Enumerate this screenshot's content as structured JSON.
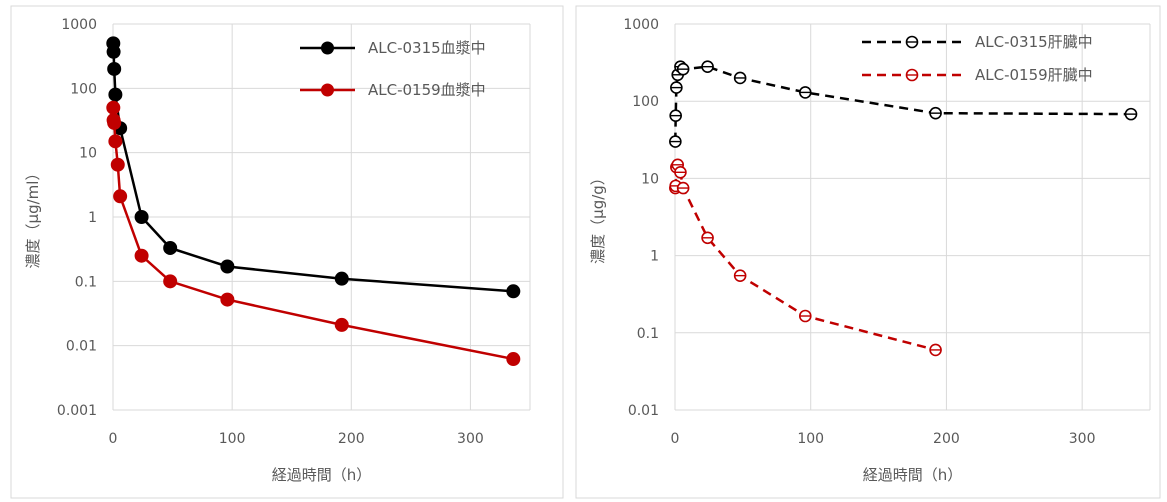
{
  "chart_data": [
    {
      "type": "line",
      "xlabel": "経過時間（h）",
      "ylabel": "濃度（μg/ml）",
      "yscale": "log",
      "xlim": [
        0,
        350
      ],
      "ylim": [
        0.001,
        1000
      ],
      "xticks": [
        "0",
        "100",
        "200",
        "300"
      ],
      "yticks": [
        "0.001",
        "0.01",
        "0.1",
        "1",
        "10",
        "100",
        "1000"
      ],
      "grid": true,
      "legend_position": "top-right",
      "series": [
        {
          "name": "ALC-0315血漿中",
          "color": "#000000",
          "marker": "filled-circle",
          "line": "solid",
          "x": [
            0.25,
            0.5,
            1,
            2,
            6,
            24,
            48,
            96,
            192,
            336
          ],
          "y": [
            500,
            370,
            200,
            80,
            24,
            1.0,
            0.33,
            0.17,
            0.11,
            0.07
          ]
        },
        {
          "name": "ALC-0159血漿中",
          "color": "#c00000",
          "marker": "filled-circle",
          "line": "solid",
          "x": [
            0.25,
            0.5,
            1,
            2,
            4,
            6,
            24,
            48,
            96,
            192,
            336
          ],
          "y": [
            50,
            32,
            29,
            15,
            6.5,
            2.1,
            0.25,
            0.1,
            0.052,
            0.021,
            0.0062
          ]
        }
      ]
    },
    {
      "type": "line",
      "xlabel": "経過時間（h）",
      "ylabel": "濃度（μg/g）",
      "yscale": "log",
      "xlim": [
        0,
        350
      ],
      "ylim": [
        0.01,
        1000
      ],
      "xticks": [
        "0",
        "100",
        "200",
        "300"
      ],
      "yticks": [
        "0.01",
        "0.1",
        "1",
        "10",
        "100",
        "1000"
      ],
      "grid": true,
      "legend_position": "top-right",
      "series": [
        {
          "name": "ALC-0315肝臓中",
          "color": "#000000",
          "marker": "open-circle",
          "line": "dashed",
          "x": [
            0.25,
            0.5,
            1,
            2,
            4,
            6,
            24,
            48,
            96,
            192,
            336
          ],
          "y": [
            30,
            65,
            150,
            220,
            280,
            260,
            280,
            200,
            130,
            70,
            68
          ]
        },
        {
          "name": "ALC-0159肝臓中",
          "color": "#c00000",
          "marker": "open-circle",
          "line": "dashed",
          "x": [
            0.25,
            0.5,
            1,
            2,
            4,
            6,
            24,
            48,
            96,
            192
          ],
          "y": [
            7.5,
            8,
            14,
            15,
            12,
            7.5,
            1.7,
            0.55,
            0.165,
            0.06
          ]
        }
      ]
    }
  ]
}
